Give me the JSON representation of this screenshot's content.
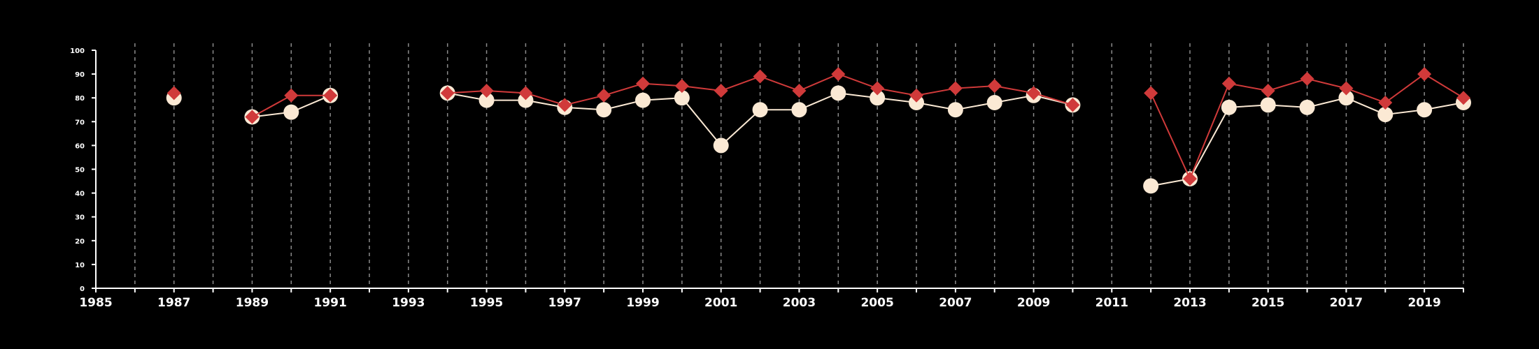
{
  "chart_data": {
    "type": "line",
    "title": "",
    "xlabel": "",
    "ylabel": "",
    "xlim": [
      1985,
      2020
    ],
    "ylim": [
      0,
      100
    ],
    "x_ticks": [
      1985,
      1987,
      1989,
      1991,
      1993,
      1995,
      1997,
      1999,
      2001,
      2003,
      2005,
      2007,
      2009,
      2011,
      2013,
      2015,
      2017,
      2019
    ],
    "y_ticks": [
      0,
      10,
      20,
      30,
      40,
      50,
      60,
      70,
      80,
      90,
      100
    ],
    "vertical_gridlines": "dashed, every year",
    "legend": "none",
    "colors": {
      "background": "#000000",
      "axis": "#ffffff",
      "grid": "#8a8a8a",
      "series_circle": "#fbe9d4",
      "series_diamond": "#d03a3a"
    },
    "series": [
      {
        "marker": "circle",
        "color": "#fbe9d4",
        "points": [
          [
            1987,
            80
          ],
          [
            1989,
            72
          ],
          [
            1990,
            74
          ],
          [
            1991,
            81
          ],
          [
            1994,
            82
          ],
          [
            1995,
            79
          ],
          [
            1996,
            79
          ],
          [
            1997,
            76
          ],
          [
            1998,
            75
          ],
          [
            1999,
            79
          ],
          [
            2000,
            80
          ],
          [
            2001,
            60
          ],
          [
            2002,
            75
          ],
          [
            2003,
            75
          ],
          [
            2004,
            82
          ],
          [
            2005,
            80
          ],
          [
            2006,
            78
          ],
          [
            2007,
            75
          ],
          [
            2008,
            78
          ],
          [
            2009,
            81
          ],
          [
            2010,
            77
          ],
          [
            2012,
            43
          ],
          [
            2013,
            46
          ],
          [
            2014,
            76
          ],
          [
            2015,
            77
          ],
          [
            2016,
            76
          ],
          [
            2017,
            80
          ],
          [
            2018,
            73
          ],
          [
            2019,
            75
          ],
          [
            2020,
            78
          ]
        ]
      },
      {
        "marker": "diamond",
        "color": "#d03a3a",
        "points": [
          [
            1987,
            82
          ],
          [
            1989,
            72
          ],
          [
            1990,
            81
          ],
          [
            1991,
            81
          ],
          [
            1994,
            82
          ],
          [
            1995,
            83
          ],
          [
            1996,
            82
          ],
          [
            1997,
            77
          ],
          [
            1998,
            81
          ],
          [
            1999,
            86
          ],
          [
            2000,
            85
          ],
          [
            2001,
            83
          ],
          [
            2002,
            89
          ],
          [
            2003,
            83
          ],
          [
            2004,
            90
          ],
          [
            2005,
            84
          ],
          [
            2006,
            81
          ],
          [
            2007,
            84
          ],
          [
            2008,
            85
          ],
          [
            2009,
            82
          ],
          [
            2010,
            77
          ],
          [
            2012,
            82
          ],
          [
            2013,
            46
          ],
          [
            2014,
            86
          ],
          [
            2015,
            83
          ],
          [
            2016,
            88
          ],
          [
            2017,
            84
          ],
          [
            2018,
            78
          ],
          [
            2019,
            90
          ],
          [
            2020,
            80
          ]
        ]
      }
    ]
  }
}
